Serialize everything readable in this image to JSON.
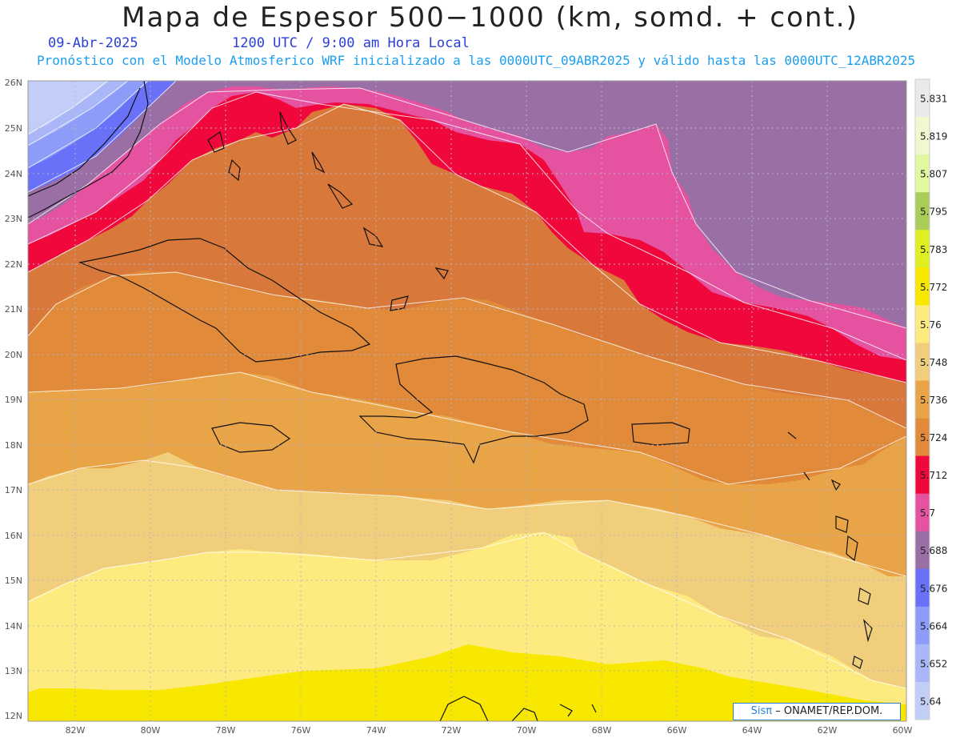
{
  "header": {
    "title": "Mapa de Espesor 500−1000 (km, somd. + cont.)",
    "date": "09-Abr-2025",
    "time": "1200 UTC / 9:00 am Hora Local",
    "run_info": "Pronóstico con el Modelo Atmosferico WRF inicializado a las 0000UTC_09ABR2025 y válido hasta las  0000UTC_12ABR2025"
  },
  "credit": {
    "brand": "Sisπ",
    "org": "– ONAMET/REP.DOM."
  },
  "axes": {
    "lon_labels": [
      "82W",
      "80W",
      "78W",
      "76W",
      "74W",
      "72W",
      "70W",
      "68W",
      "66W",
      "64W",
      "62W",
      "60W"
    ],
    "lat_labels": [
      "26N",
      "25N",
      "24N",
      "23N",
      "22N",
      "21N",
      "20N",
      "19N",
      "18N",
      "17N",
      "16N",
      "15N",
      "14N",
      "13N",
      "12N"
    ]
  },
  "colorbar": {
    "levels": [
      "5.831",
      "5.819",
      "5.807",
      "5.795",
      "5.783",
      "5.772",
      "5.76",
      "5.748",
      "5.736",
      "5.724",
      "5.712",
      "5.7",
      "5.688",
      "5.676",
      "5.664",
      "5.652",
      "5.64"
    ],
    "colors": [
      "#eaeaea",
      "#f2f7d0",
      "#e2f7a0",
      "#aacd5a",
      "#e0ef20",
      "#f8e800",
      "#fdeb80",
      "#f1ce7c",
      "#eaa448",
      "#e08a3a",
      "#f0083d",
      "#e553a0",
      "#9a6fa6",
      "#6871f8",
      "#8c9cf8",
      "#a9b7f8",
      "#c2cef8"
    ]
  },
  "legend_colors": {
    "lt_5640": "#c2cef8",
    "b5640": "#a9b7f8",
    "b5652": "#8c9cf8",
    "b5664": "#6871f8",
    "b5676": "#9a6fa6",
    "b5688": "#e553a0",
    "b5700": "#f0083d",
    "b5712": "#d8783a",
    "b5724": "#e08a3a",
    "b5736": "#eaa448",
    "b5748": "#f1ce7c",
    "b5760": "#fdeb80",
    "b5772": "#f8e800"
  }
}
